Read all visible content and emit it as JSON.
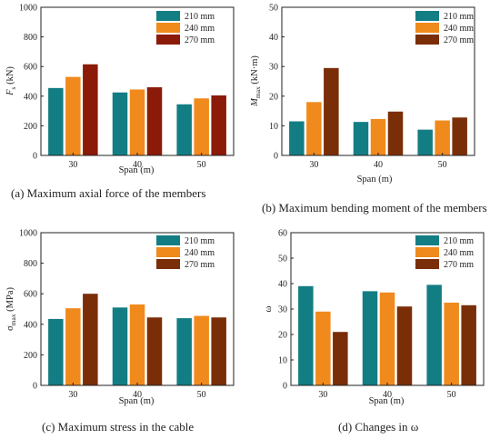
{
  "colors": {
    "s210": "#137d84",
    "s240": "#f08a1c",
    "s270": "#7a2e08",
    "s270_panel_a": "#8b1a08"
  },
  "chart_data": [
    {
      "type": "bar",
      "caption": "(a) Maximum axial force of the members",
      "xlabel": "Span (m)",
      "ylabel_main": "F",
      "ylabel_sub": "s",
      "ylabel_unit": " (kN)",
      "categories": [
        "30",
        "40",
        "50"
      ],
      "ylim": [
        0,
        1000
      ],
      "yticks": [
        0,
        200,
        400,
        600,
        800,
        1000
      ],
      "legend_position": "top-right",
      "series": [
        {
          "name": "210 mm",
          "values": [
            455,
            425,
            345
          ]
        },
        {
          "name": "240 mm",
          "values": [
            530,
            445,
            385
          ]
        },
        {
          "name": "270 mm",
          "values": [
            615,
            460,
            405
          ]
        }
      ]
    },
    {
      "type": "bar",
      "caption": "(b) Maximum bending moment of the members",
      "xlabel": "Span (m)",
      "ylabel_main": "M",
      "ylabel_sub": "max",
      "ylabel_unit": " (kN·m)",
      "categories": [
        "30",
        "40",
        "50"
      ],
      "ylim": [
        0,
        50
      ],
      "yticks": [
        0,
        10,
        20,
        30,
        40,
        50
      ],
      "legend_position": "top-right",
      "series": [
        {
          "name": "210 mm",
          "values": [
            11.5,
            11.3,
            8.7
          ]
        },
        {
          "name": "240 mm",
          "values": [
            18,
            12.3,
            11.8
          ]
        },
        {
          "name": "270 mm",
          "values": [
            29.5,
            14.8,
            12.8
          ]
        }
      ]
    },
    {
      "type": "bar",
      "caption": "(c) Maximum stress in the cable",
      "xlabel": "Span (m)",
      "ylabel_main": "σ",
      "ylabel_sub": "max",
      "ylabel_unit": " (MPa)",
      "categories": [
        "30",
        "40",
        "50"
      ],
      "ylim": [
        0,
        1000
      ],
      "yticks": [
        0,
        200,
        400,
        600,
        800,
        1000
      ],
      "legend_position": "top-left",
      "series": [
        {
          "name": "210 mm",
          "values": [
            435,
            510,
            440
          ]
        },
        {
          "name": "240 mm",
          "values": [
            505,
            530,
            455
          ]
        },
        {
          "name": "270 mm",
          "values": [
            600,
            445,
            445
          ]
        }
      ]
    },
    {
      "type": "bar",
      "caption": "(d) Changes in ω",
      "xlabel": "Span (m)",
      "ylabel_main": "ω",
      "ylabel_sub": "",
      "ylabel_unit": "",
      "categories": [
        "30",
        "40",
        "50"
      ],
      "ylim": [
        0,
        60
      ],
      "yticks": [
        0,
        10,
        20,
        30,
        40,
        50,
        60
      ],
      "legend_position": "top-right",
      "series": [
        {
          "name": "210 mm",
          "values": [
            39,
            37,
            39.5
          ]
        },
        {
          "name": "240 mm",
          "values": [
            29,
            36.5,
            32.5
          ]
        },
        {
          "name": "270 mm",
          "values": [
            21,
            31,
            31.5
          ]
        }
      ]
    }
  ]
}
